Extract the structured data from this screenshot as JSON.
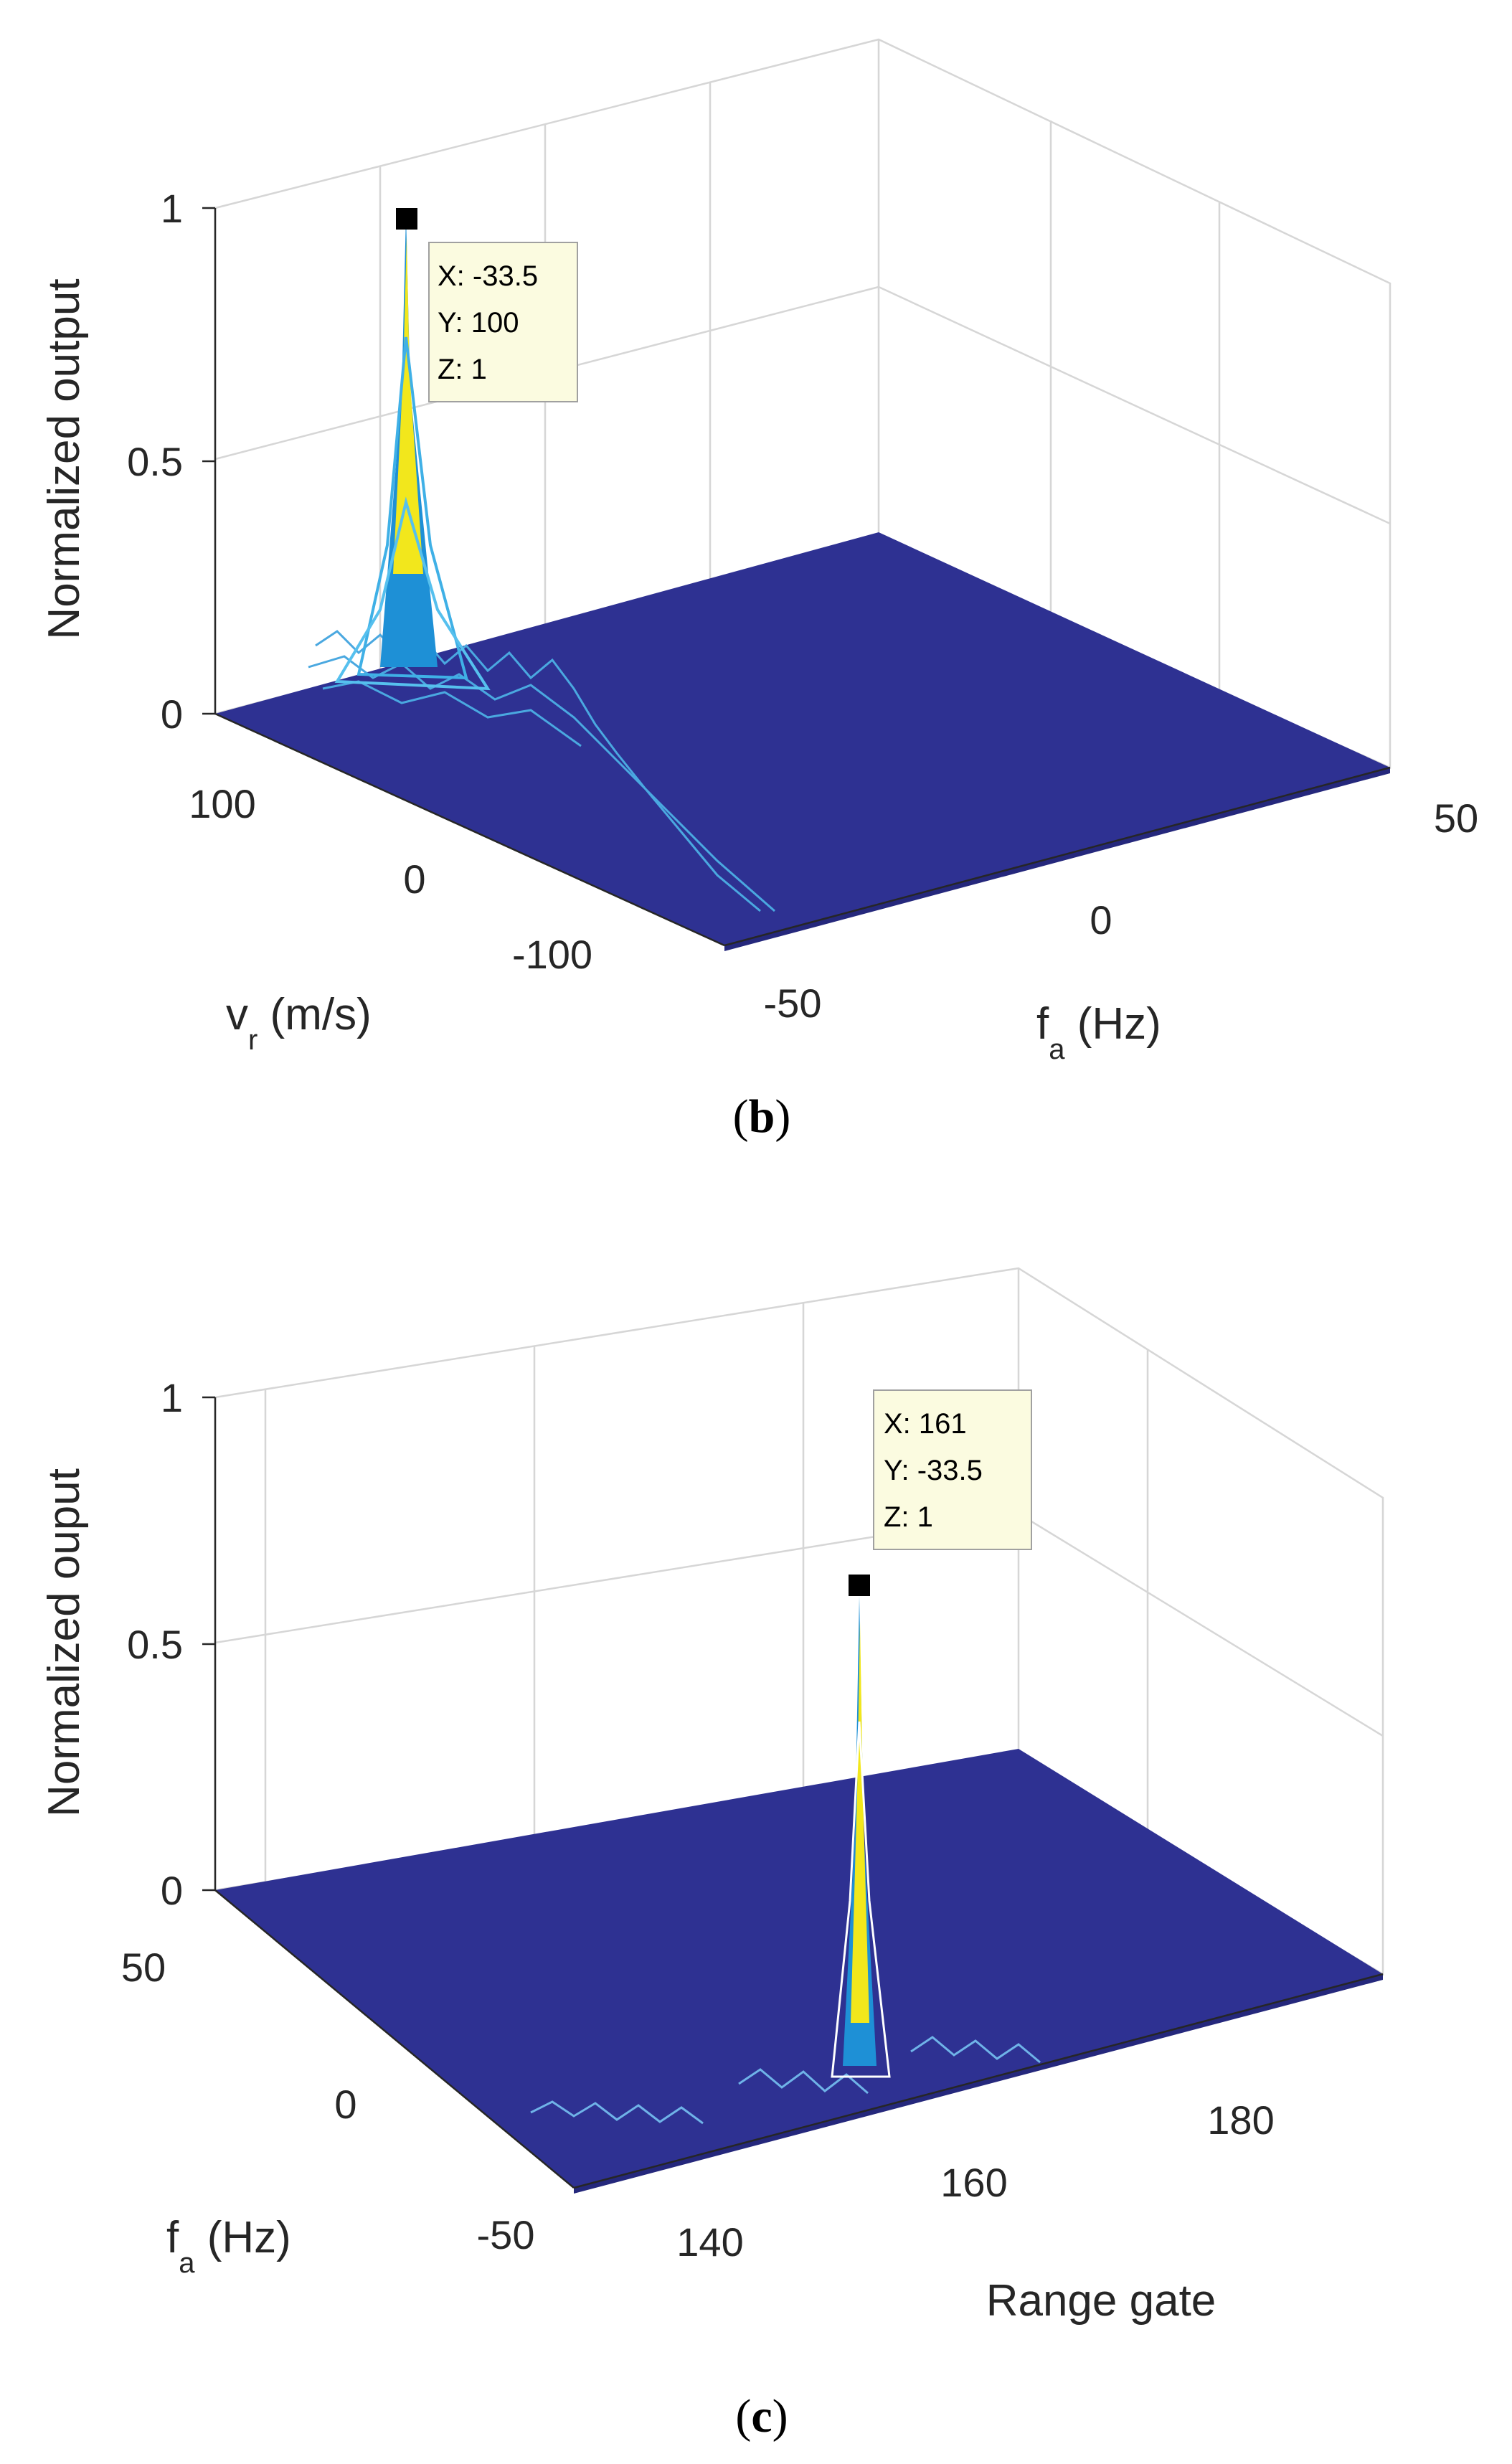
{
  "chart_data": [
    {
      "type": "surface",
      "panel": "b",
      "caption_open": "(",
      "caption_letter": "b",
      "caption_close": ")",
      "zlabel": "Normalized output",
      "ylabel_main": "v",
      "ylabel_sub": "r",
      "ylabel_unit": " (m/s)",
      "xlabel_main": "f",
      "xlabel_sub": "a",
      "xlabel_unit": " (Hz)",
      "z_ticks": [
        "0",
        "0.5",
        "1"
      ],
      "y_ticks": [
        "100",
        "0",
        "-100"
      ],
      "x_ticks": [
        "-50",
        "0",
        "50"
      ],
      "zlim": [
        0,
        1
      ],
      "peak": {
        "x": -33.5,
        "y": 100,
        "z": 1
      },
      "datatip": [
        "X: -33.5",
        "Y: 100",
        "Z: 1"
      ]
    },
    {
      "type": "surface",
      "panel": "c",
      "caption_open": "(",
      "caption_letter": "c",
      "caption_close": ")",
      "zlabel": "Normalized ouput",
      "ylabel_main": "f",
      "ylabel_sub": "a",
      "ylabel_unit": " (Hz)",
      "xlabel": "Range gate",
      "z_ticks": [
        "0",
        "0.5",
        "1"
      ],
      "y_ticks": [
        "50",
        "0",
        "-50"
      ],
      "x_ticks": [
        "140",
        "160",
        "180"
      ],
      "zlim": [
        0,
        1
      ],
      "peak": {
        "x": 161,
        "y": -33.5,
        "z": 1
      },
      "datatip": [
        "X: 161",
        "Y: -33.5",
        "Z: 1"
      ]
    }
  ],
  "colors": {
    "surface": "#2e3192",
    "peak_low": "#1e90d6",
    "peak_high": "#f2e71c",
    "frame": "#262626"
  }
}
